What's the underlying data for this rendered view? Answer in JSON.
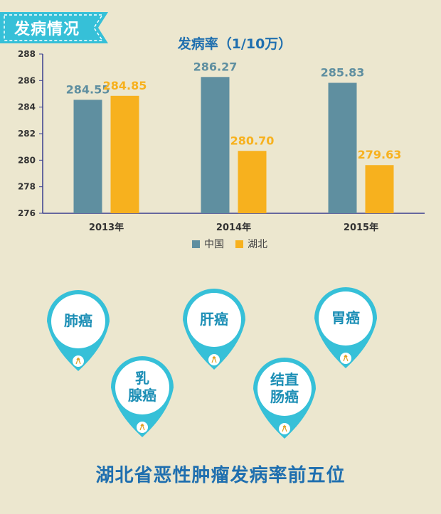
{
  "banner": {
    "label": "发病情况"
  },
  "colors": {
    "china": "#5F8FA0",
    "hubei": "#F7B11E",
    "axis": "#3A3F8F",
    "banner": "#36C0D8",
    "pin_ring": "#36C0D8"
  },
  "chart_data": {
    "type": "bar",
    "title": "发病率（1/10万）",
    "categories": [
      "2013年",
      "2014年",
      "2015年"
    ],
    "series": [
      {
        "name": "中国",
        "values": [
          284.55,
          286.27,
          285.83
        ],
        "labels": [
          "284.55",
          "286.27",
          "285.83"
        ]
      },
      {
        "name": "湖北",
        "values": [
          284.85,
          280.7,
          279.63
        ],
        "labels": [
          "284.85",
          "280.70",
          "279.63"
        ]
      }
    ],
    "ylim": [
      276,
      288
    ],
    "yticks": [
      276,
      278,
      280,
      282,
      284,
      286,
      288
    ],
    "grid": false,
    "legend": "bottom"
  },
  "pins": [
    {
      "label": "肺癌",
      "icon": "ribbon-icon"
    },
    {
      "label": "乳\n腺癌",
      "icon": "ribbon-icon"
    },
    {
      "label": "肝癌",
      "icon": "ribbon-icon"
    },
    {
      "label": "结直\n肠癌",
      "icon": "ribbon-icon"
    },
    {
      "label": "胃癌",
      "icon": "ribbon-icon"
    }
  ],
  "footer": {
    "title": "湖北省恶性肿瘤发病率前五位"
  }
}
